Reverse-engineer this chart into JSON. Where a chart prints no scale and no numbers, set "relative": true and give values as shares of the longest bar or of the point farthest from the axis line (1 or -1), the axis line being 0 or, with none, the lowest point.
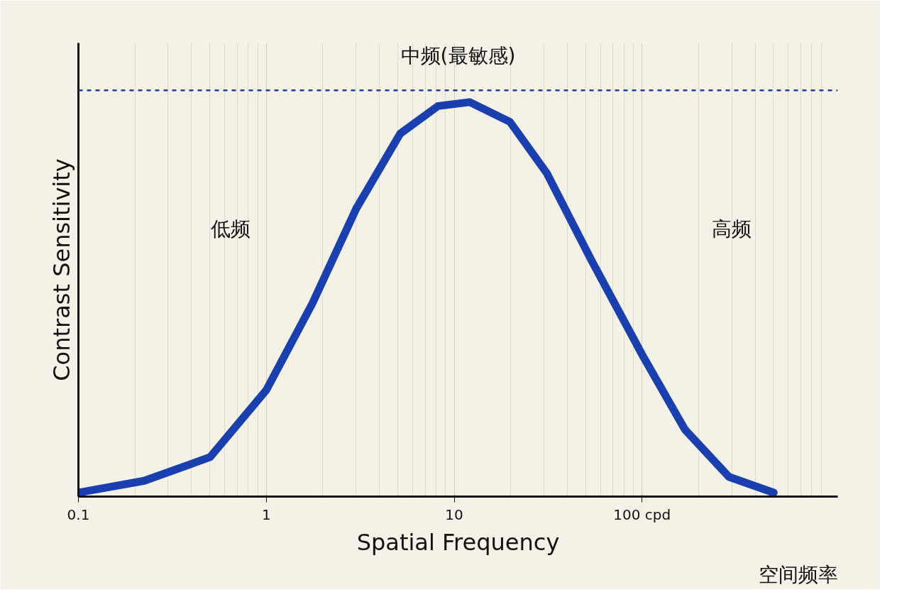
{
  "chart_data": {
    "type": "line",
    "relative": true,
    "log": "x",
    "xlabel": "Spatial Frequency",
    "ylabel": "Contrast Sensitivity",
    "xlim": [
      0.1,
      1100
    ],
    "xticks": [
      0.1,
      1,
      10,
      {
        "value": 100,
        "label": "100 cpd"
      }
    ],
    "tick_labels": "x",
    "grid": "x",
    "marker": "none",
    "line_style": "solid",
    "x": [
      0.1,
      0.224,
      0.502,
      1,
      1.76,
      3.01,
      5.16,
      8.2,
      12.1,
      19.8,
      31.1,
      53.6,
      100,
      169,
      290,
      502
    ],
    "series": [
      {
        "color": "#1a3fae",
        "values": [
          0.01,
          0.04,
          0.1,
          0.27,
          0.49,
          0.73,
          0.92,
          0.99,
          1.0,
          0.95,
          0.82,
          0.6,
          0.36,
          0.17,
          0.05,
          0.01
        ]
      }
    ],
    "ref_lines": [
      {
        "axis": "y",
        "value": 1.03,
        "label": null,
        "color": "#1f3fa0",
        "line_style": "dashed"
      }
    ],
    "annotations": [
      "中频(最敏感)",
      "低频",
      "高频",
      "空间频率"
    ]
  }
}
